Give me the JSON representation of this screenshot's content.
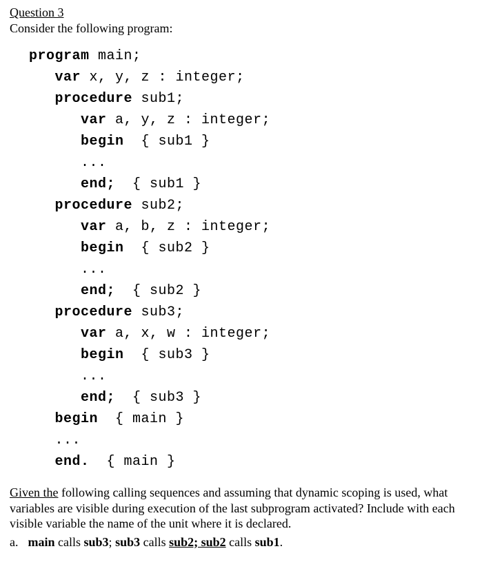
{
  "question": {
    "title": "Question 3",
    "description": "Consider the following program:"
  },
  "code": {
    "lines": [
      {
        "indent": 0,
        "segments": [
          {
            "t": "program ",
            "kw": true
          },
          {
            "t": "main;"
          }
        ]
      },
      {
        "indent": 1,
        "segments": [
          {
            "t": "var ",
            "kw": true
          },
          {
            "t": "x, y, z : integer;"
          }
        ]
      },
      {
        "indent": 1,
        "segments": [
          {
            "t": "procedure ",
            "kw": true
          },
          {
            "t": "sub1;"
          }
        ]
      },
      {
        "indent": 2,
        "segments": [
          {
            "t": "var ",
            "kw": true
          },
          {
            "t": "a, y, z : integer;"
          }
        ]
      },
      {
        "indent": 2,
        "segments": [
          {
            "t": "begin",
            "kw": true
          },
          {
            "t": "  { sub1 }"
          }
        ]
      },
      {
        "indent": 2,
        "segments": [
          {
            "t": "..."
          }
        ]
      },
      {
        "indent": 2,
        "segments": [
          {
            "t": "end;",
            "kw": true
          },
          {
            "t": "  { sub1 }"
          }
        ]
      },
      {
        "indent": 1,
        "segments": [
          {
            "t": "procedure ",
            "kw": true
          },
          {
            "t": "sub2;"
          }
        ]
      },
      {
        "indent": 2,
        "segments": [
          {
            "t": "var ",
            "kw": true
          },
          {
            "t": "a, b, z : integer;"
          }
        ]
      },
      {
        "indent": 2,
        "segments": [
          {
            "t": "begin",
            "kw": true
          },
          {
            "t": "  { sub2 }"
          }
        ]
      },
      {
        "indent": 2,
        "segments": [
          {
            "t": "..."
          }
        ]
      },
      {
        "indent": 2,
        "segments": [
          {
            "t": "end;",
            "kw": true
          },
          {
            "t": "  { sub2 }"
          }
        ]
      },
      {
        "indent": 1,
        "segments": [
          {
            "t": "procedure ",
            "kw": true
          },
          {
            "t": "sub3;"
          }
        ]
      },
      {
        "indent": 2,
        "segments": [
          {
            "t": "var ",
            "kw": true
          },
          {
            "t": "a, x, w : integer;"
          }
        ]
      },
      {
        "indent": 2,
        "segments": [
          {
            "t": "begin",
            "kw": true
          },
          {
            "t": "  { sub3 }"
          }
        ]
      },
      {
        "indent": 2,
        "segments": [
          {
            "t": "..."
          }
        ]
      },
      {
        "indent": 2,
        "segments": [
          {
            "t": "end;",
            "kw": true
          },
          {
            "t": "  { sub3 }"
          }
        ]
      },
      {
        "indent": 1,
        "segments": [
          {
            "t": "begin",
            "kw": true
          },
          {
            "t": "  { main }"
          }
        ]
      },
      {
        "indent": 1,
        "segments": [
          {
            "t": "..."
          }
        ]
      },
      {
        "indent": 1,
        "segments": [
          {
            "t": "end.",
            "kw": true
          },
          {
            "t": "  { main }"
          }
        ]
      }
    ],
    "indent_unit": "   "
  },
  "bottom": {
    "given_the": "Given  the",
    "given_rest": " following calling sequences and assuming that dynamic scoping is used, what variables are visible during execution of the last subprogram activated? Include with each visible variable the name of the unit where it is declared.",
    "part_label": "a.",
    "a_main": "main",
    "a_t1": " calls ",
    "a_sub3": "sub3",
    "a_t2": "; ",
    "a_sub3b": "sub3",
    "a_t3": " calls ",
    "a_sub2u": "sub2;  sub2",
    "a_t4": " calls ",
    "a_sub1": "sub1",
    "a_t5": "."
  }
}
